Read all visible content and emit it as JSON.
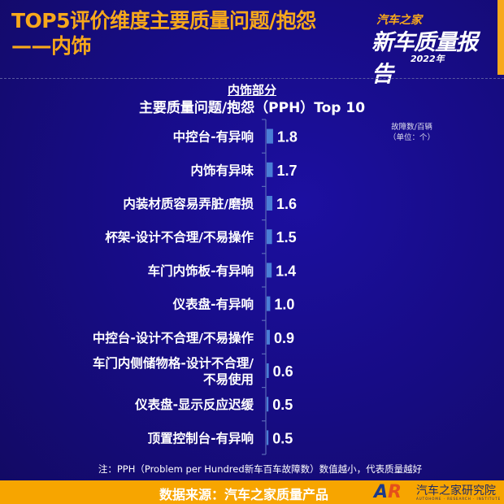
{
  "header": {
    "title_line1": "TOP5评价维度主要质量问题/抱怨",
    "title_line2": "——内饰",
    "logo": {
      "line1": "汽车之家",
      "line2": "新车质量报告",
      "year": "2022年"
    }
  },
  "chart_data": {
    "type": "bar",
    "orientation": "horizontal",
    "title": "内饰部分",
    "subtitle": "主要质量问题/抱怨（PPH）Top 10",
    "unit_label": [
      "故障数/百辆",
      "（单位：个）"
    ],
    "categories": [
      "中控台-有异响",
      "内饰有异味",
      "内装材质容易弄脏/磨损",
      "杯架-设计不合理/不易操作",
      "车门内饰板-有异响",
      "仪表盘-有异响",
      "中控台-设计不合理/不易操作",
      "车门内侧储物格-设计不合理/\n不易使用",
      "仪表盘-显示反应迟缓",
      "顶置控制台-有异响"
    ],
    "values": [
      1.8,
      1.7,
      1.6,
      1.5,
      1.4,
      1.0,
      0.9,
      0.6,
      0.5,
      0.5
    ],
    "value_labels": [
      "1.8",
      "1.7",
      "1.6",
      "1.5",
      "1.4",
      "1.0",
      "0.9",
      "0.6",
      "0.5",
      "0.5"
    ],
    "bar_color": "#4a7fd6"
  },
  "note": "注：PPH（Problem per Hundred新车百车故障数）数值越小，代表质量越好",
  "footer": {
    "source": "数据来源：汽车之家质量产品",
    "brand_mark": "AR",
    "brand": "汽车之家研究院",
    "brand_en": "AUTOHOME · RESEARCH · INSTITUTE"
  },
  "colors": {
    "accent": "#f7a81b",
    "background": "#170c86"
  }
}
